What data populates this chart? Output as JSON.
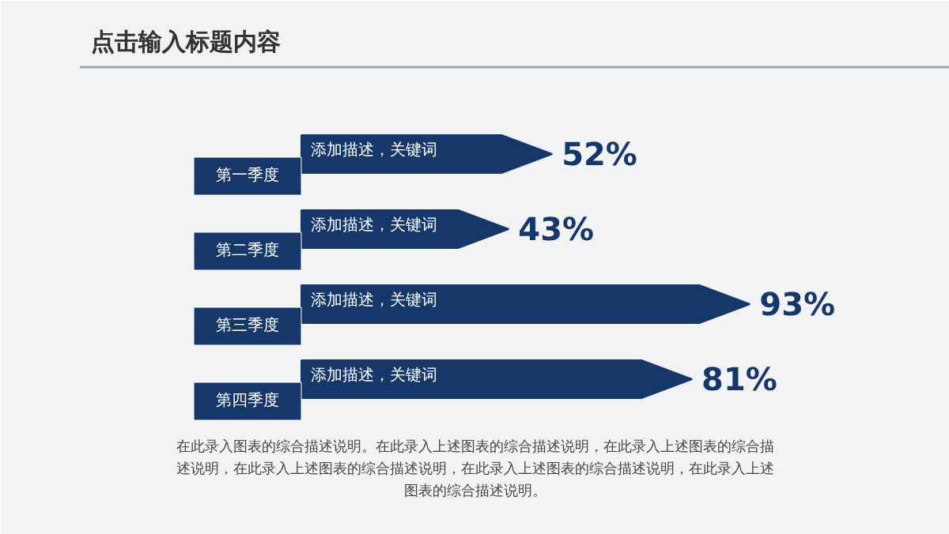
{
  "chart_data": {
    "type": "bar",
    "orientation": "horizontal",
    "title": "点击输入标题内容",
    "categories": [
      "第一季度",
      "第二季度",
      "第三季度",
      "第四季度"
    ],
    "values": [
      52,
      43,
      93,
      81
    ],
    "value_labels": [
      "52%",
      "43%",
      "93%",
      "81%"
    ],
    "color": "#163769",
    "annotations": [
      {
        "text": "添加描述，关键词",
        "y": "第一季度"
      },
      {
        "text": "添加描述，关键词",
        "y": "第二季度"
      },
      {
        "text": "添加描述，关键词",
        "y": "第三季度"
      },
      {
        "text": "添加描述，关键词",
        "y": "第四季度"
      },
      "在此录入图表的综合描述说明。在此录入上述图表的综合描述说明，在此录入上述图表的综合描述说明，在此录入上述图表的综合描述说明，在此录入上述图表的综合描述说明，在此录入上述图表的综合描述说明。"
    ]
  }
}
